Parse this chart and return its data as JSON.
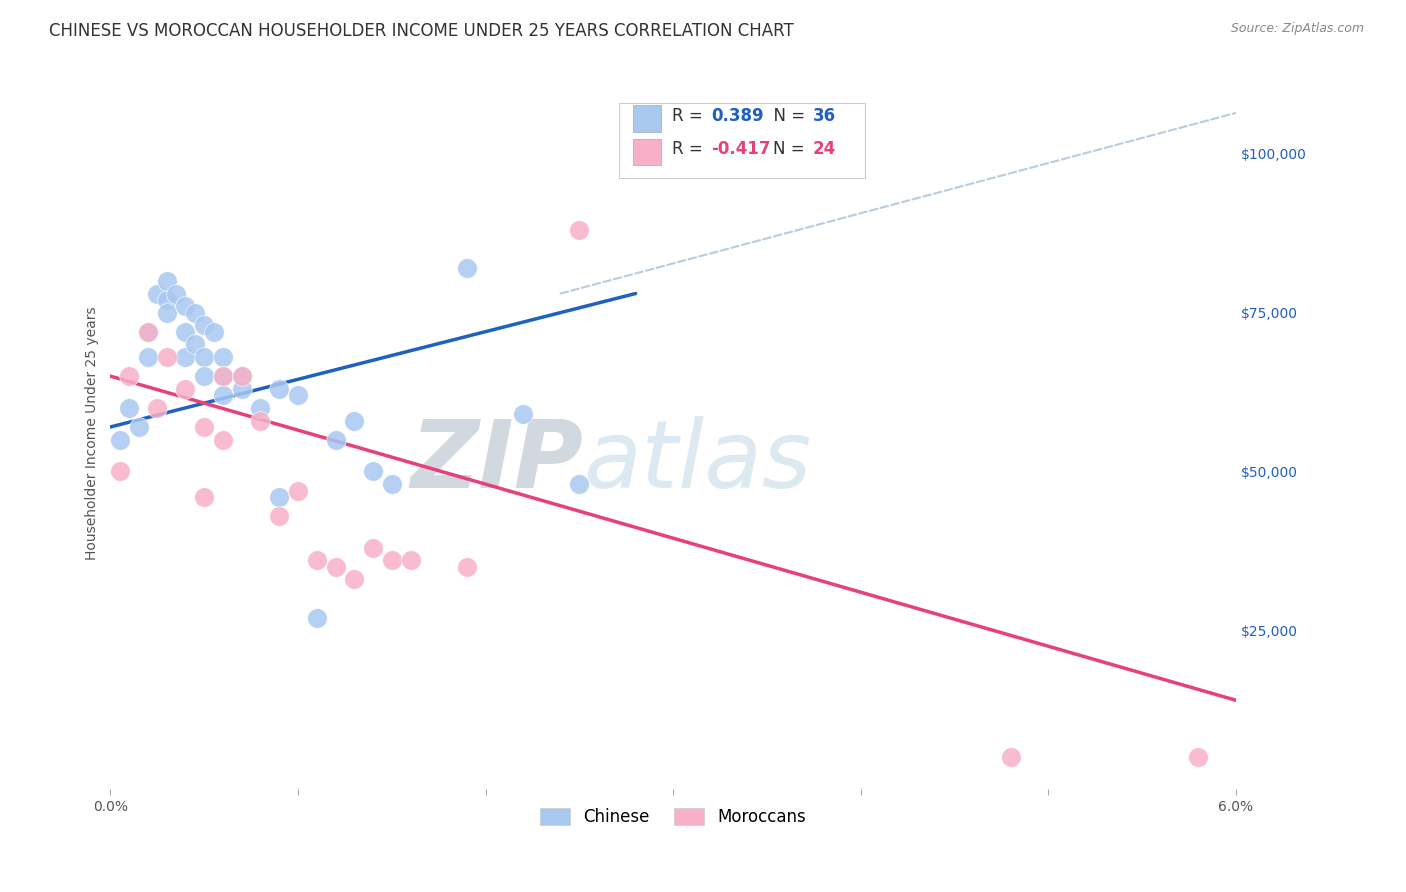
{
  "title": "CHINESE VS MOROCCAN HOUSEHOLDER INCOME UNDER 25 YEARS CORRELATION CHART",
  "source": "Source: ZipAtlas.com",
  "ylabel": "Householder Income Under 25 years",
  "xlim": [
    0.0,
    0.06
  ],
  "ylim": [
    0,
    112000
  ],
  "yticks": [
    25000,
    50000,
    75000,
    100000
  ],
  "ytick_labels": [
    "$25,000",
    "$50,000",
    "$75,000",
    "$100,000"
  ],
  "xticks": [
    0.0,
    0.01,
    0.02,
    0.03,
    0.04,
    0.05,
    0.06
  ],
  "xtick_labels": [
    "0.0%",
    "",
    "",
    "",
    "",
    "",
    "6.0%"
  ],
  "chinese_R": "0.389",
  "chinese_N": "36",
  "moroccan_R": "-0.417",
  "moroccan_N": "24",
  "chinese_color": "#a8c8f0",
  "moroccan_color": "#f8b0c8",
  "chinese_line_color": "#2060c0",
  "moroccan_line_color": "#e8407a",
  "dashed_line_color": "#b8cce0",
  "watermark_zip": "ZIP",
  "watermark_atlas": "atlas",
  "chinese_x": [
    0.0005,
    0.001,
    0.0015,
    0.002,
    0.002,
    0.0025,
    0.003,
    0.003,
    0.003,
    0.0035,
    0.004,
    0.004,
    0.004,
    0.0045,
    0.0045,
    0.005,
    0.005,
    0.005,
    0.0055,
    0.006,
    0.006,
    0.006,
    0.007,
    0.007,
    0.008,
    0.009,
    0.009,
    0.01,
    0.011,
    0.012,
    0.013,
    0.014,
    0.015,
    0.019,
    0.022,
    0.025
  ],
  "chinese_y": [
    55000,
    60000,
    57000,
    68000,
    72000,
    78000,
    77000,
    80000,
    75000,
    78000,
    72000,
    76000,
    68000,
    75000,
    70000,
    73000,
    68000,
    65000,
    72000,
    68000,
    65000,
    62000,
    65000,
    63000,
    60000,
    63000,
    46000,
    62000,
    27000,
    55000,
    58000,
    50000,
    48000,
    82000,
    59000,
    48000
  ],
  "moroccan_x": [
    0.0005,
    0.001,
    0.002,
    0.0025,
    0.003,
    0.004,
    0.005,
    0.005,
    0.006,
    0.006,
    0.007,
    0.008,
    0.009,
    0.01,
    0.011,
    0.012,
    0.013,
    0.014,
    0.015,
    0.016,
    0.019,
    0.025,
    0.048,
    0.058
  ],
  "moroccan_y": [
    50000,
    65000,
    72000,
    60000,
    68000,
    63000,
    57000,
    46000,
    65000,
    55000,
    65000,
    58000,
    43000,
    47000,
    36000,
    35000,
    33000,
    38000,
    36000,
    36000,
    35000,
    88000,
    5000,
    5000
  ],
  "chinese_trendline_x": [
    0.0,
    0.028
  ],
  "chinese_trendline_y": [
    57000,
    78000
  ],
  "moroccan_trendline_x": [
    0.0,
    0.06
  ],
  "moroccan_trendline_y": [
    65000,
    14000
  ],
  "dashed_line_x": [
    0.024,
    0.062
  ],
  "dashed_line_y": [
    78000,
    108000
  ],
  "background_color": "#ffffff",
  "grid_color": "#d8e4f0",
  "title_fontsize": 12,
  "axis_label_fontsize": 10,
  "tick_fontsize": 10,
  "legend_fontsize": 12
}
